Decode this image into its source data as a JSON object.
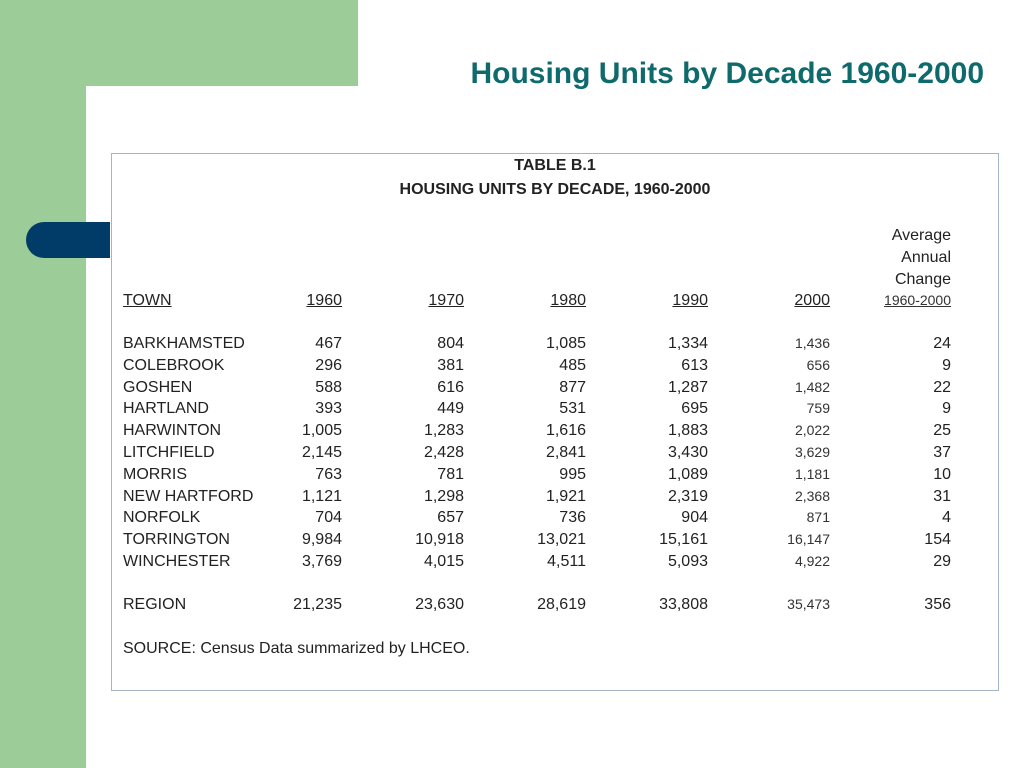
{
  "slide_title": "Housing Units by Decade 1960-2000",
  "table": {
    "label": "TABLE B.1",
    "caption": "HOUSING UNITS BY DECADE, 1960-2000",
    "avg_header": [
      "Average",
      "Annual",
      "Change"
    ],
    "columns": [
      "TOWN",
      "1960",
      "1970",
      "1980",
      "1990",
      "2000",
      "1960-2000"
    ],
    "rows": [
      [
        "BARKHAMSTED",
        "467",
        "804",
        "1,085",
        "1,334",
        "1,436",
        "24"
      ],
      [
        "COLEBROOK",
        "296",
        "381",
        "485",
        "613",
        "656",
        "9"
      ],
      [
        "GOSHEN",
        "588",
        "616",
        "877",
        "1,287",
        "1,482",
        "22"
      ],
      [
        "HARTLAND",
        "393",
        "449",
        "531",
        "695",
        "759",
        "9"
      ],
      [
        "HARWINTON",
        "1,005",
        "1,283",
        "1,616",
        "1,883",
        "2,022",
        "25"
      ],
      [
        "LITCHFIELD",
        "2,145",
        "2,428",
        "2,841",
        "3,430",
        "3,629",
        "37"
      ],
      [
        "MORRIS",
        "763",
        "781",
        "995",
        "1,089",
        "1,181",
        "10"
      ],
      [
        "NEW HARTFORD",
        "1,121",
        "1,298",
        "1,921",
        "2,319",
        "2,368",
        "31"
      ],
      [
        "NORFOLK",
        "704",
        "657",
        "736",
        "904",
        "871",
        "4"
      ],
      [
        "TORRINGTON",
        "9,984",
        "10,918",
        "13,021",
        "15,161",
        "16,147",
        "154"
      ],
      [
        "WINCHESTER",
        "3,769",
        "4,015",
        "4,511",
        "5,093",
        "4,922",
        "29"
      ]
    ],
    "total": [
      "REGION",
      "21,235",
      "23,630",
      "28,619",
      "33,808",
      "35,473",
      "356"
    ],
    "source": "SOURCE:  Census Data summarized by LHCEO."
  }
}
